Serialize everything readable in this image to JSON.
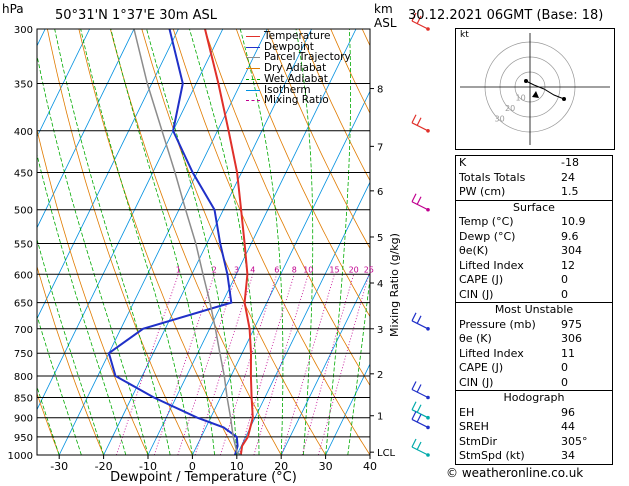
{
  "header": {
    "units_left": "hPa",
    "location": "50°31'N  1°37'E  30m  ASL",
    "units_right_1": "km",
    "units_right_2": "ASL",
    "datetime": "30.12.2021  06GMT  (Base: 18)"
  },
  "legend": [
    {
      "label": "Temperature",
      "color": "#e0302a"
    },
    {
      "label": "Dewpoint",
      "color": "#2030c8"
    },
    {
      "label": "Parcel Trajectory",
      "color": "#8c8c8c"
    },
    {
      "label": "Dry Adiabat",
      "color": "#e07b00"
    },
    {
      "label": "Wet Adiabat",
      "color": "#00aa00"
    },
    {
      "label": "Isotherm",
      "color": "#0090e0"
    },
    {
      "label": "Mixing Ratio",
      "color": "#c0008f"
    }
  ],
  "chart_data": {
    "type": "line",
    "xlabel": "Dewpoint / Temperature (°C)",
    "ylabel_right": "Mixing Ratio (g/kg)",
    "x_ticks": [
      -30,
      -20,
      -10,
      0,
      10,
      20,
      30,
      40
    ],
    "xlim": [
      -35,
      40
    ],
    "pressure_levels": [
      300,
      350,
      400,
      450,
      500,
      550,
      600,
      650,
      700,
      750,
      800,
      850,
      900,
      950,
      1000
    ],
    "altitude_labels": [
      {
        "km": "8",
        "p": 355
      },
      {
        "km": "7",
        "p": 418
      },
      {
        "km": "6",
        "p": 474
      },
      {
        "km": "5",
        "p": 540
      },
      {
        "km": "4",
        "p": 615
      },
      {
        "km": "3",
        "p": 700
      },
      {
        "km": "2",
        "p": 795
      },
      {
        "km": "1",
        "p": 895
      },
      {
        "km": "LCL",
        "p": 992
      }
    ],
    "mixing_ratio_labels": [
      "1",
      "2",
      "3",
      "4",
      "6",
      "8",
      "10",
      "15",
      "20",
      "25"
    ],
    "mixing_ratio_values": [
      1,
      2,
      3,
      4,
      6,
      8,
      10,
      15,
      20,
      25
    ],
    "series": [
      {
        "name": "Temperature",
        "points": [
          [
            1000,
            10.9
          ],
          [
            975,
            10.2
          ],
          [
            950,
            10.5
          ],
          [
            925,
            10.0
          ],
          [
            900,
            9.5
          ],
          [
            850,
            7.0
          ],
          [
            800,
            4.5
          ],
          [
            750,
            2.0
          ],
          [
            700,
            -1.0
          ],
          [
            650,
            -5.0
          ],
          [
            600,
            -7.5
          ],
          [
            550,
            -11.5
          ],
          [
            500,
            -16.0
          ],
          [
            450,
            -21.0
          ],
          [
            400,
            -27.5
          ],
          [
            350,
            -35.0
          ],
          [
            300,
            -44.0
          ]
        ]
      },
      {
        "name": "Dewpoint",
        "points": [
          [
            1000,
            9.6
          ],
          [
            975,
            9.2
          ],
          [
            950,
            8.0
          ],
          [
            925,
            4.0
          ],
          [
            900,
            -3.0
          ],
          [
            850,
            -15.0
          ],
          [
            800,
            -26.0
          ],
          [
            750,
            -30.0
          ],
          [
            700,
            -25.0
          ],
          [
            650,
            -8.0
          ],
          [
            600,
            -12.0
          ],
          [
            550,
            -17.0
          ],
          [
            500,
            -22.0
          ],
          [
            450,
            -31.0
          ],
          [
            400,
            -40.0
          ],
          [
            350,
            -43.0
          ],
          [
            300,
            -52.0
          ]
        ]
      },
      {
        "name": "Parcel Trajectory",
        "points": [
          [
            1000,
            10.9
          ],
          [
            992,
            9.7
          ],
          [
            950,
            7.2
          ],
          [
            900,
            4.5
          ],
          [
            850,
            1.5
          ],
          [
            800,
            -1.5
          ],
          [
            750,
            -5.0
          ],
          [
            700,
            -8.7
          ],
          [
            650,
            -12.8
          ],
          [
            600,
            -17.5
          ],
          [
            550,
            -22.5
          ],
          [
            500,
            -28.5
          ],
          [
            450,
            -35.0
          ],
          [
            400,
            -42.5
          ],
          [
            350,
            -51.0
          ],
          [
            300,
            -60.0
          ]
        ]
      }
    ]
  },
  "indices": [
    {
      "label": "K",
      "value": "-18"
    },
    {
      "label": "Totals Totals",
      "value": "24"
    },
    {
      "label": "PW (cm)",
      "value": "1.5"
    }
  ],
  "surface": {
    "title": "Surface",
    "rows": [
      {
        "label": "Temp (°C)",
        "value": "10.9"
      },
      {
        "label": "Dewp (°C)",
        "value": "9.6"
      },
      {
        "label": "θe(K)",
        "value": "304"
      },
      {
        "label": "Lifted Index",
        "value": "12"
      },
      {
        "label": "CAPE (J)",
        "value": "0"
      },
      {
        "label": "CIN (J)",
        "value": "0"
      }
    ]
  },
  "most_unstable": {
    "title": "Most Unstable",
    "rows": [
      {
        "label": "Pressure (mb)",
        "value": "975"
      },
      {
        "label": "θe (K)",
        "value": "306"
      },
      {
        "label": "Lifted Index",
        "value": "11"
      },
      {
        "label": "CAPE (J)",
        "value": "0"
      },
      {
        "label": "CIN (J)",
        "value": "0"
      }
    ]
  },
  "hodograph": {
    "title": "Hodograph",
    "box_label": "kt",
    "ring_labels": [
      "10",
      "20",
      "30"
    ],
    "rows": [
      {
        "label": "EH",
        "value": "96"
      },
      {
        "label": "SREH",
        "value": "44"
      },
      {
        "label": "StmDir",
        "value": "305°"
      },
      {
        "label": "StmSpd (kt)",
        "value": "34"
      }
    ]
  },
  "footer": "© weatheronline.co.uk"
}
